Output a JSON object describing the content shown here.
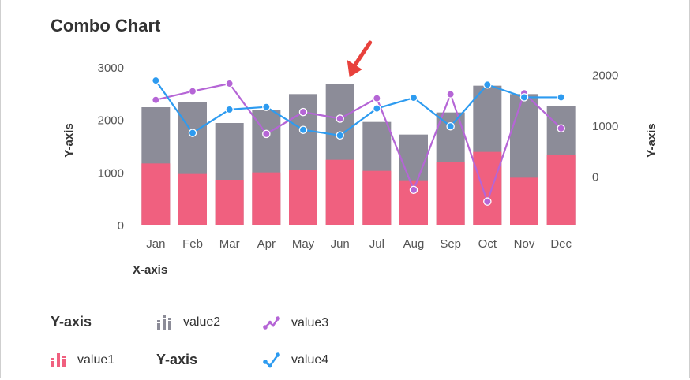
{
  "title": "Combo Chart",
  "chart_data": {
    "type": "bar+line",
    "categories": [
      "Jan",
      "Feb",
      "Mar",
      "Apr",
      "May",
      "Jun",
      "Jul",
      "Aug",
      "Sep",
      "Oct",
      "Nov",
      "Dec"
    ],
    "xlabel": "X-axis",
    "ylabel_left": "Y-axis",
    "ylabel_right": "Y-axis",
    "left_axis": {
      "ticks": [
        0,
        1000,
        2000,
        3000
      ],
      "ylim": [
        0,
        3000
      ]
    },
    "right_axis": {
      "ticks": [
        0,
        1000,
        2000
      ],
      "ylim": [
        -950,
        2150
      ]
    },
    "bar_series": [
      {
        "name": "value1",
        "color": "#f0607f",
        "values": [
          1180,
          980,
          870,
          1010,
          1050,
          1250,
          1040,
          860,
          1200,
          1400,
          910,
          1340
        ]
      },
      {
        "name": "value2",
        "color": "#8c8c98",
        "values": [
          2250,
          2350,
          1950,
          2200,
          2500,
          2700,
          1970,
          1730,
          2150,
          2660,
          2500,
          2280
        ]
      }
    ],
    "line_series": [
      {
        "name": "value3",
        "color": "#b565d6",
        "values": [
          1520,
          1690,
          1840,
          850,
          1280,
          1150,
          1550,
          -250,
          1630,
          -480,
          1650,
          960
        ]
      },
      {
        "name": "value4",
        "color": "#2d9bf0",
        "values": [
          1900,
          870,
          1330,
          1380,
          930,
          820,
          1350,
          1560,
          1000,
          1820,
          1570,
          1570
        ]
      }
    ],
    "legend": {
      "position": "bottom",
      "items": [
        {
          "label": "Y-axis",
          "kind": "title"
        },
        {
          "label": "value2",
          "kind": "bar",
          "color": "#8c8c98"
        },
        {
          "label": "value3",
          "kind": "line",
          "color": "#b565d6"
        },
        {
          "label": "value1",
          "kind": "bar",
          "color": "#f0607f"
        },
        {
          "label": "Y-axis",
          "kind": "title"
        },
        {
          "label": "value4",
          "kind": "line",
          "color": "#2d9bf0"
        }
      ]
    },
    "annotation": {
      "type": "arrow",
      "target": "Jun",
      "color": "#e8413c"
    },
    "grid": false
  }
}
